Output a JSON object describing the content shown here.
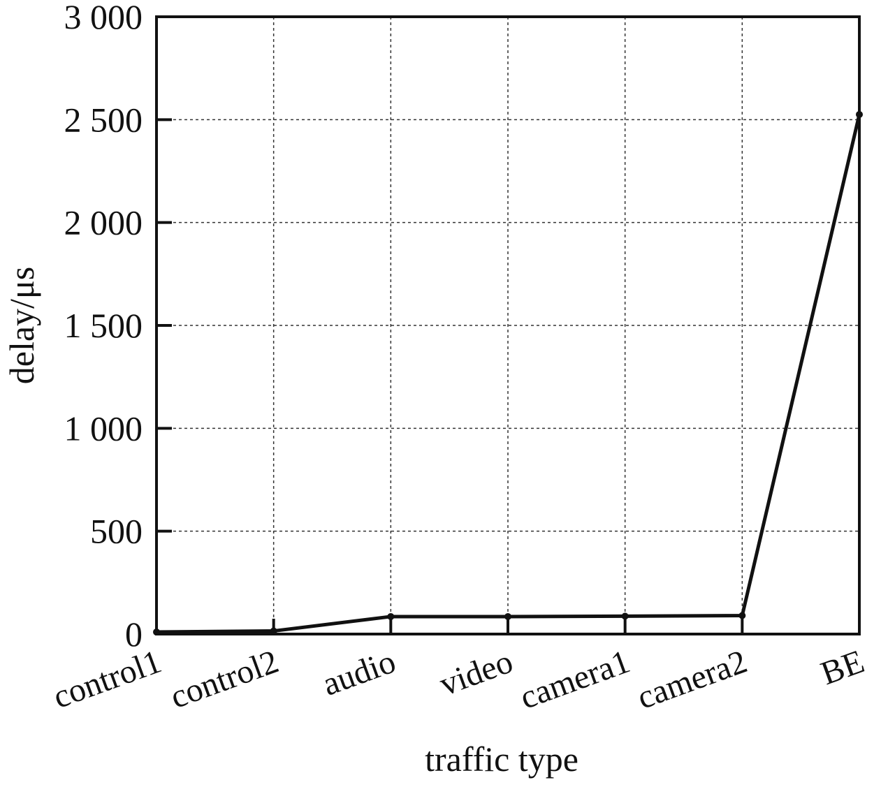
{
  "chart_data": {
    "type": "line",
    "categories": [
      "control1",
      "control2",
      "audio",
      "video",
      "camera1",
      "camera2",
      "BE"
    ],
    "series": [
      {
        "values": [
          10,
          15,
          85,
          85,
          87,
          90,
          2525
        ]
      }
    ],
    "xlabel": "traffic type",
    "ylabel": "delay/μs",
    "ylim": [
      0,
      3000
    ],
    "yticks": [
      0,
      500,
      1000,
      1500,
      2000,
      2500,
      3000
    ],
    "ytick_labels": [
      "0",
      "500",
      "1 000",
      "1 500",
      "2 000",
      "2 500",
      "3 000"
    ],
    "grid": true,
    "legend": "none",
    "colors": {
      "line": "#111111",
      "grid": "#333333"
    }
  }
}
